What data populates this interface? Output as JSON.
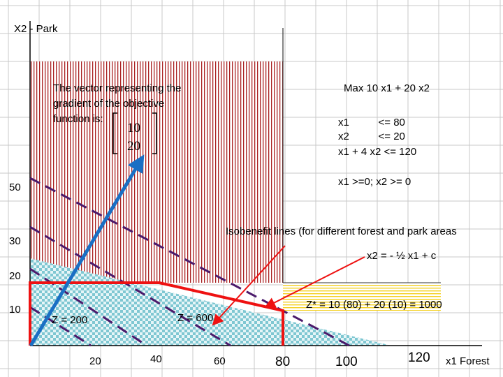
{
  "axes": {
    "y_title": "X2 - Park",
    "x_title": "x1 Forest",
    "y_ticks": [
      {
        "value": 50,
        "label": "50"
      },
      {
        "value": 30,
        "label": "30"
      },
      {
        "value": 20,
        "label": "20"
      },
      {
        "value": 10,
        "label": "10"
      }
    ],
    "x_ticks": [
      {
        "value": 20,
        "label": "20"
      },
      {
        "value": 40,
        "label": "40"
      },
      {
        "value": 60,
        "label": "60"
      },
      {
        "value": 80,
        "label": "80"
      },
      {
        "value": 100,
        "label": "100"
      },
      {
        "value": 120,
        "label": "120"
      }
    ]
  },
  "gradient_note": {
    "lines": [
      "The vector representing the",
      "gradient of the objective",
      "function is:"
    ],
    "vector": [
      "10",
      "20"
    ]
  },
  "model": {
    "objective": "Max 10 x1 + 20 x2",
    "constraints": [
      "x1          <= 80",
      "x2          <= 20",
      "x1 + 4 x2 <= 120"
    ],
    "nonneg": "x1 >=0; x2 >= 0"
  },
  "isobenefit": {
    "label": "Isobenefit lines (for different forest and park areas",
    "equation": "x2 = - ½ x1 + c"
  },
  "level_labels": {
    "z200": "Z = 200",
    "z600": "Z = 600",
    "optimum": "Z* = 10 (80) + 20 (10) = 1000"
  },
  "colors": {
    "feasible_border": "#ee1111",
    "gradient_arrow": "#1a6fc4",
    "isoline": "#4b1a6b",
    "park_hatch": "#aa2222",
    "forest_check": "#7fc7d2",
    "yellow_hatch": "#f4d020",
    "annotation_arrow": "#ee1111"
  }
}
